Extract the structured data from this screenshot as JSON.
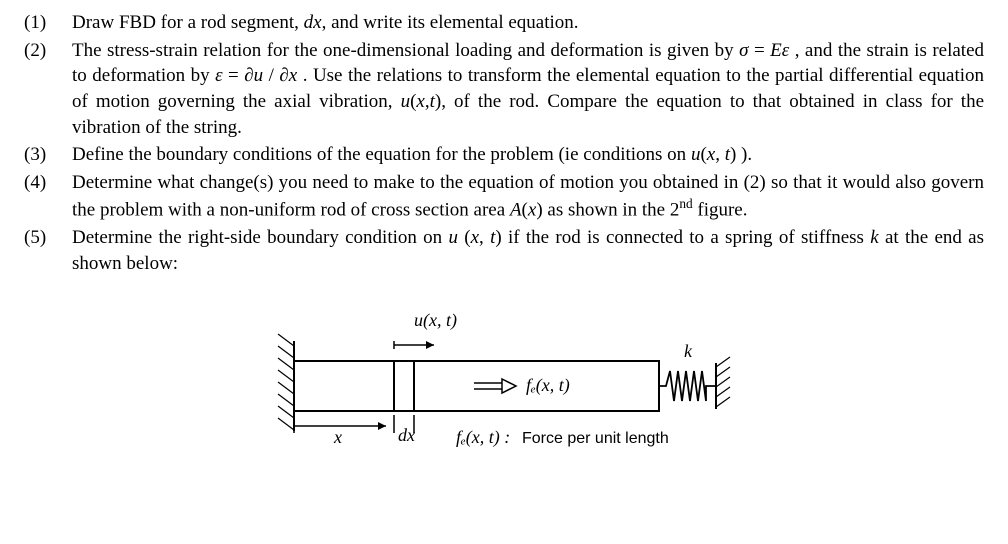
{
  "items": [
    {
      "num": "(1)",
      "html": "Draw FBD for a rod segment, <span class='italic-var'>dx</span>, and write its elemental equation."
    },
    {
      "num": "(2)",
      "html": "The stress-strain relation for the one-dimensional loading and deformation is given by <span class='italic-var'>σ</span> = <span class='italic-var'>Eε</span> , and the strain is related to deformation by <span class='italic-var'>ε</span> = ∂<span class='italic-var'>u</span> / ∂<span class='italic-var'>x</span> . Use the relations to transform the elemental equation to the partial differential equation of motion governing the axial vibration, <span class='italic-var'>u</span>(<span class='italic-var'>x</span>,<span class='italic-var'>t</span>), of the rod. Compare the equation to that obtained in class for the vibration of the string."
    },
    {
      "num": "(3)",
      "html": "Define the boundary conditions of the equation for the problem (ie conditions on <span class='italic-var'>u</span>(<span class='italic-var'>x</span>, <span class='italic-var'>t</span>) )."
    },
    {
      "num": "(4)",
      "html": "Determine what change(s) you need to make to the equation of motion you obtained in (2) so that it would also govern the problem with a non-uniform rod of cross section area <span class='italic-var'>A</span>(<span class='italic-var'>x</span>) as shown in the 2<sup>nd</sup> figure."
    },
    {
      "num": "(5)",
      "html": "Determine the right-side boundary condition on <span class='italic-var'>u</span> (<span class='italic-var'>x</span>, <span class='italic-var'>t</span>)  if the rod is connected to a spring of stiffness <span class='italic-var'>k</span> at the end as shown below:"
    }
  ],
  "diagram": {
    "u_label": "u(x, t)",
    "k_label": "k",
    "fe_label": "fₑ(x, t)",
    "fe_desc_label": "fₑ(x, t) :",
    "fe_desc_text": "Force per unit length",
    "x_label": "x",
    "dx_label": "dx",
    "stroke": "#000000",
    "stroke_width": 2,
    "hatch_width": 1.2
  }
}
